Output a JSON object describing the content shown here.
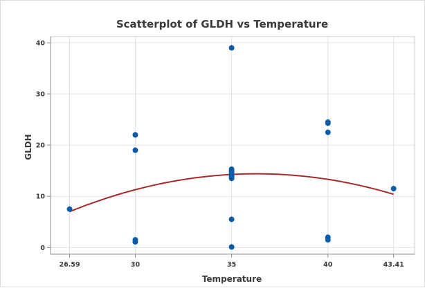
{
  "chart_data": {
    "type": "scatter",
    "title": "Scatterplot of GLDH vs Temperature",
    "xlabel": "Temperature",
    "ylabel": "GLDH",
    "xlim": [
      25.6,
      44.5
    ],
    "ylim": [
      -1.3,
      41.2
    ],
    "xticks": [
      26.59,
      30,
      35,
      40,
      43.41
    ],
    "xtick_labels": [
      "26.59",
      "30",
      "35",
      "40",
      "43.41"
    ],
    "yticks": [
      0,
      10,
      20,
      30,
      40
    ],
    "ytick_labels": [
      "0",
      "10",
      "20",
      "30",
      "40"
    ],
    "grid": true,
    "series": [
      {
        "x": [
          26.59,
          30,
          30,
          30,
          30,
          35,
          35,
          35,
          35,
          35,
          35,
          35,
          35,
          35,
          35,
          40,
          40,
          40,
          40,
          40,
          43.41
        ],
        "y": [
          7.5,
          22,
          19,
          1.5,
          1.1,
          39,
          15.3,
          15,
          14.7,
          14.4,
          14.1,
          13.8,
          13.5,
          5.5,
          0.1,
          24.5,
          24.3,
          22.5,
          2,
          1.5,
          11.5
        ]
      }
    ],
    "fit_curve": {
      "type": "quadratic",
      "x_range": [
        26.59,
        43.41
      ],
      "points": [
        [
          26.59,
          7.0
        ],
        [
          30,
          11.2
        ],
        [
          35,
          14.2
        ],
        [
          36.5,
          14.4
        ],
        [
          40,
          13.2
        ],
        [
          43.41,
          10.4
        ]
      ]
    },
    "colors": {
      "points": "#0b5ca8",
      "fit_line": "#a52a2a",
      "grid": "#e3e3e3",
      "axis": "#8c8c8c",
      "plot_border": "#c8c8c8"
    }
  }
}
